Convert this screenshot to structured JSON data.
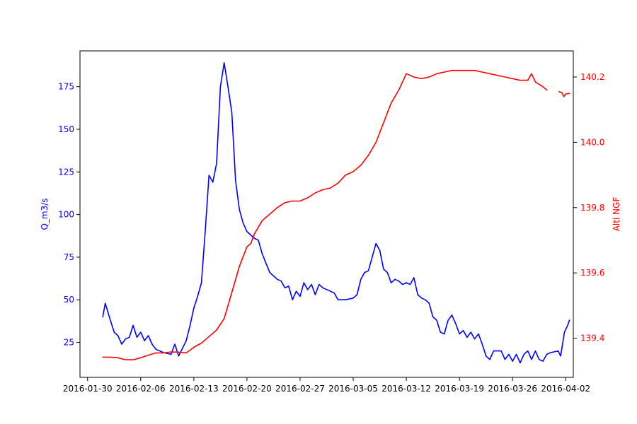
{
  "chart_data": {
    "type": "line",
    "title": "",
    "xlabel": "",
    "x_axis": {
      "type": "date",
      "range": [
        "2016-01-29",
        "2016-04-03"
      ],
      "ticks": [
        "2016-01-30",
        "2016-02-06",
        "2016-02-13",
        "2016-02-20",
        "2016-02-27",
        "2016-03-05",
        "2016-03-12",
        "2016-03-19",
        "2016-03-26",
        "2016-04-02"
      ]
    },
    "y_left": {
      "label": "Q_m3/s",
      "color": "#0000ff",
      "range": [
        4.5,
        196
      ],
      "ticks": [
        25,
        50,
        75,
        100,
        125,
        150,
        175
      ],
      "tick_labels": [
        "25",
        "50",
        "75",
        "100",
        "125",
        "150",
        "175"
      ]
    },
    "y_right": {
      "label": "Alti NGF",
      "color": "#ff0000",
      "range": [
        139.28,
        140.28
      ],
      "ticks": [
        139.4,
        139.6,
        139.8,
        140.0,
        140.2
      ],
      "tick_labels": [
        "139.4",
        "139.6",
        "139.8",
        "140.0",
        "140.2"
      ]
    },
    "grid": false,
    "legend": "none",
    "series": [
      {
        "axis": "left",
        "color": "#0000ff",
        "points": [
          [
            "2016-02-01",
            40
          ],
          [
            "2016-02-01T08:00",
            48
          ],
          [
            "2016-02-02",
            38
          ],
          [
            "2016-02-02T12:00",
            31
          ],
          [
            "2016-02-03",
            29
          ],
          [
            "2016-02-03T12:00",
            24
          ],
          [
            "2016-02-04",
            27
          ],
          [
            "2016-02-04T12:00",
            28
          ],
          [
            "2016-02-05",
            35
          ],
          [
            "2016-02-05T12:00",
            28
          ],
          [
            "2016-02-06",
            31
          ],
          [
            "2016-02-06T12:00",
            26
          ],
          [
            "2016-02-07",
            29
          ],
          [
            "2016-02-07T12:00",
            24
          ],
          [
            "2016-02-08",
            21
          ],
          [
            "2016-02-09",
            19
          ],
          [
            "2016-02-10",
            18
          ],
          [
            "2016-02-10T12:00",
            24
          ],
          [
            "2016-02-11",
            17
          ],
          [
            "2016-02-12",
            26
          ],
          [
            "2016-02-12T12:00",
            35
          ],
          [
            "2016-02-13",
            45
          ],
          [
            "2016-02-13T12:00",
            52
          ],
          [
            "2016-02-14",
            60
          ],
          [
            "2016-02-14T12:00",
            90
          ],
          [
            "2016-02-15",
            123
          ],
          [
            "2016-02-15T12:00",
            119
          ],
          [
            "2016-02-16",
            130
          ],
          [
            "2016-02-16T12:00",
            175
          ],
          [
            "2016-02-17",
            189
          ],
          [
            "2016-02-17T12:00",
            175
          ],
          [
            "2016-02-18",
            160
          ],
          [
            "2016-02-18T12:00",
            120
          ],
          [
            "2016-02-19",
            103
          ],
          [
            "2016-02-19T12:00",
            95
          ],
          [
            "2016-02-20",
            90
          ],
          [
            "2016-02-21",
            86
          ],
          [
            "2016-02-21T12:00",
            85
          ],
          [
            "2016-02-22",
            77
          ],
          [
            "2016-02-23",
            66
          ],
          [
            "2016-02-24",
            62
          ],
          [
            "2016-02-24T12:00",
            61
          ],
          [
            "2016-02-25",
            57
          ],
          [
            "2016-02-25T12:00",
            58
          ],
          [
            "2016-02-26",
            50
          ],
          [
            "2016-02-26T12:00",
            55
          ],
          [
            "2016-02-27",
            52
          ],
          [
            "2016-02-27T12:00",
            60
          ],
          [
            "2016-02-28",
            56
          ],
          [
            "2016-02-28T12:00",
            59
          ],
          [
            "2016-02-29",
            53
          ],
          [
            "2016-02-29T12:00",
            59
          ],
          [
            "2016-03-01",
            57
          ],
          [
            "2016-03-02",
            55
          ],
          [
            "2016-03-02T12:00",
            54
          ],
          [
            "2016-03-03",
            50
          ],
          [
            "2016-03-04",
            50
          ],
          [
            "2016-03-05",
            51
          ],
          [
            "2016-03-05T12:00",
            53
          ],
          [
            "2016-03-06",
            62
          ],
          [
            "2016-03-06T12:00",
            66
          ],
          [
            "2016-03-07",
            67
          ],
          [
            "2016-03-07T12:00",
            75
          ],
          [
            "2016-03-08",
            83
          ],
          [
            "2016-03-08T12:00",
            79
          ],
          [
            "2016-03-09",
            68
          ],
          [
            "2016-03-09T12:00",
            66
          ],
          [
            "2016-03-10",
            60
          ],
          [
            "2016-03-10T12:00",
            62
          ],
          [
            "2016-03-11",
            61
          ],
          [
            "2016-03-11T12:00",
            59
          ],
          [
            "2016-03-12",
            60
          ],
          [
            "2016-03-12T12:00",
            59
          ],
          [
            "2016-03-13",
            63
          ],
          [
            "2016-03-13T12:00",
            53
          ],
          [
            "2016-03-14",
            51
          ],
          [
            "2016-03-14T12:00",
            50
          ],
          [
            "2016-03-15",
            48
          ],
          [
            "2016-03-15T12:00",
            40
          ],
          [
            "2016-03-16",
            38
          ],
          [
            "2016-03-16T12:00",
            31
          ],
          [
            "2016-03-17",
            30
          ],
          [
            "2016-03-17T12:00",
            38
          ],
          [
            "2016-03-18",
            41
          ],
          [
            "2016-03-18T12:00",
            36
          ],
          [
            "2016-03-19",
            30
          ],
          [
            "2016-03-19T12:00",
            32
          ],
          [
            "2016-03-20",
            28
          ],
          [
            "2016-03-20T12:00",
            31
          ],
          [
            "2016-03-21",
            27
          ],
          [
            "2016-03-21T12:00",
            30
          ],
          [
            "2016-03-22",
            24
          ],
          [
            "2016-03-22T12:00",
            17
          ],
          [
            "2016-03-23",
            15
          ],
          [
            "2016-03-23T12:00",
            20
          ],
          [
            "2016-03-24",
            20
          ],
          [
            "2016-03-24T12:00",
            20
          ],
          [
            "2016-03-25",
            15
          ],
          [
            "2016-03-25T12:00",
            18
          ],
          [
            "2016-03-26",
            14
          ],
          [
            "2016-03-26T12:00",
            18
          ],
          [
            "2016-03-27",
            13
          ],
          [
            "2016-03-27T12:00",
            18
          ],
          [
            "2016-03-28",
            20
          ],
          [
            "2016-03-28T12:00",
            15
          ],
          [
            "2016-03-29",
            20
          ],
          [
            "2016-03-29T12:00",
            15
          ],
          [
            "2016-03-30",
            14
          ],
          [
            "2016-03-30T12:00",
            18
          ],
          [
            "2016-03-31",
            19
          ],
          [
            "2016-04-01",
            20
          ],
          [
            "2016-04-01T08:00",
            17
          ],
          [
            "2016-04-01T20:00",
            31
          ],
          [
            "2016-04-02T06:00",
            35
          ],
          [
            "2016-04-02T12:00",
            38
          ]
        ]
      },
      {
        "axis": "right",
        "color": "#ff0000",
        "segments": [
          [
            [
              "2016-02-01",
              139.342
            ],
            [
              "2016-02-02",
              139.342
            ],
            [
              "2016-02-03",
              139.34
            ],
            [
              "2016-02-04",
              139.334
            ],
            [
              "2016-02-05",
              139.334
            ],
            [
              "2016-02-06",
              139.34
            ],
            [
              "2016-02-07",
              139.348
            ],
            [
              "2016-02-08",
              139.355
            ],
            [
              "2016-02-09",
              139.355
            ],
            [
              "2016-02-10",
              139.358
            ],
            [
              "2016-02-11",
              139.357
            ],
            [
              "2016-02-12",
              139.355
            ],
            [
              "2016-02-13",
              139.372
            ],
            [
              "2016-02-14",
              139.385
            ],
            [
              "2016-02-15",
              139.405
            ],
            [
              "2016-02-16",
              139.425
            ],
            [
              "2016-02-17",
              139.46
            ],
            [
              "2016-02-18",
              139.54
            ],
            [
              "2016-02-19",
              139.62
            ],
            [
              "2016-02-20",
              139.68
            ],
            [
              "2016-02-20T12:00",
              139.69
            ],
            [
              "2016-02-21",
              139.72
            ],
            [
              "2016-02-22",
              139.76
            ],
            [
              "2016-02-23",
              139.78
            ],
            [
              "2016-02-24",
              139.8
            ],
            [
              "2016-02-25",
              139.815
            ],
            [
              "2016-02-26",
              139.82
            ],
            [
              "2016-02-27",
              139.82
            ],
            [
              "2016-02-28",
              139.83
            ],
            [
              "2016-02-29",
              139.845
            ],
            [
              "2016-03-01",
              139.855
            ],
            [
              "2016-03-02",
              139.86
            ],
            [
              "2016-03-03",
              139.875
            ],
            [
              "2016-03-04",
              139.9
            ],
            [
              "2016-03-05",
              139.91
            ],
            [
              "2016-03-06",
              139.93
            ],
            [
              "2016-03-07",
              139.96
            ],
            [
              "2016-03-08",
              140.0
            ],
            [
              "2016-03-09",
              140.06
            ],
            [
              "2016-03-10",
              140.12
            ],
            [
              "2016-03-11",
              140.16
            ],
            [
              "2016-03-12",
              140.21
            ],
            [
              "2016-03-13",
              140.2
            ],
            [
              "2016-03-14",
              140.195
            ],
            [
              "2016-03-15",
              140.2
            ],
            [
              "2016-03-16",
              140.21
            ],
            [
              "2016-03-17",
              140.215
            ],
            [
              "2016-03-18",
              140.22
            ],
            [
              "2016-03-19",
              140.22
            ],
            [
              "2016-03-20",
              140.22
            ],
            [
              "2016-03-21",
              140.22
            ],
            [
              "2016-03-22",
              140.215
            ],
            [
              "2016-03-23",
              140.21
            ],
            [
              "2016-03-24",
              140.205
            ],
            [
              "2016-03-25",
              140.2
            ],
            [
              "2016-03-26",
              140.195
            ],
            [
              "2016-03-27",
              140.19
            ],
            [
              "2016-03-28",
              140.19
            ],
            [
              "2016-03-28T12:00",
              140.21
            ],
            [
              "2016-03-29",
              140.185
            ],
            [
              "2016-03-30",
              140.17
            ],
            [
              "2016-03-30T12:00",
              140.16
            ]
          ],
          [
            [
              "2016-04-01T03:00",
              140.155
            ],
            [
              "2016-04-01T12:00",
              140.152
            ],
            [
              "2016-04-01T18:00",
              140.14
            ],
            [
              "2016-04-02T00:00",
              140.148
            ],
            [
              "2016-04-02T12:00",
              140.15
            ]
          ]
        ]
      }
    ]
  }
}
